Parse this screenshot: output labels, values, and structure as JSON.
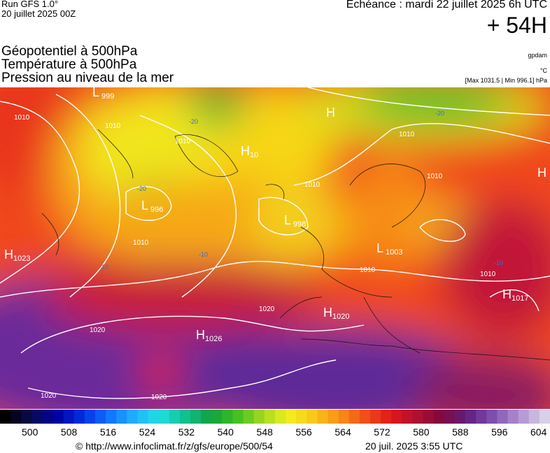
{
  "header": {
    "run": "Run GFS 1.0°",
    "date": "20 juillet 2025 00Z",
    "echeance": "Echéance : mardi 22 juillet 2025 6h UTC",
    "lead": "+ 54H"
  },
  "fields": [
    "Géopotentiel à 500hPa",
    "Température à 500hPa",
    "Pression au niveau de la mer"
  ],
  "units": [
    "gpdam",
    "°C",
    "[Max 1031.5 | Min 996.1] hPa"
  ],
  "centers": [
    {
      "letter": "L",
      "value": "999"
    },
    {
      "letter": "H",
      "value": "10"
    },
    {
      "letter": "L",
      "value": "996"
    },
    {
      "letter": "L",
      "value": "998"
    },
    {
      "letter": "H",
      "value": "1023"
    },
    {
      "letter": "L",
      "value": "1003"
    },
    {
      "letter": "H",
      "value": "1020"
    },
    {
      "letter": "H",
      "value": "1026"
    },
    {
      "letter": "H",
      "value": "1017"
    },
    {
      "letter": "H",
      "value": null
    },
    {
      "letter": "H",
      "value": null
    }
  ],
  "isobar_labels": [
    "1010",
    "1010",
    "1010",
    "1010",
    "1010",
    "1010",
    "1020",
    "1020",
    "1020",
    "1020",
    "1010",
    "1010",
    "1010"
  ],
  "temp_labels": [
    "-10",
    "-10",
    "-20",
    "-20",
    "-10",
    "-20"
  ],
  "colorbar": {
    "ticks": [
      500,
      508,
      516,
      524,
      532,
      540,
      548,
      556,
      564,
      572,
      580,
      588,
      596,
      604
    ]
  },
  "footer": {
    "url": "© http://www.infoclimat.fr/z/gfs/europe/500/54",
    "time": "20 juil. 2025  3:55 UTC"
  }
}
